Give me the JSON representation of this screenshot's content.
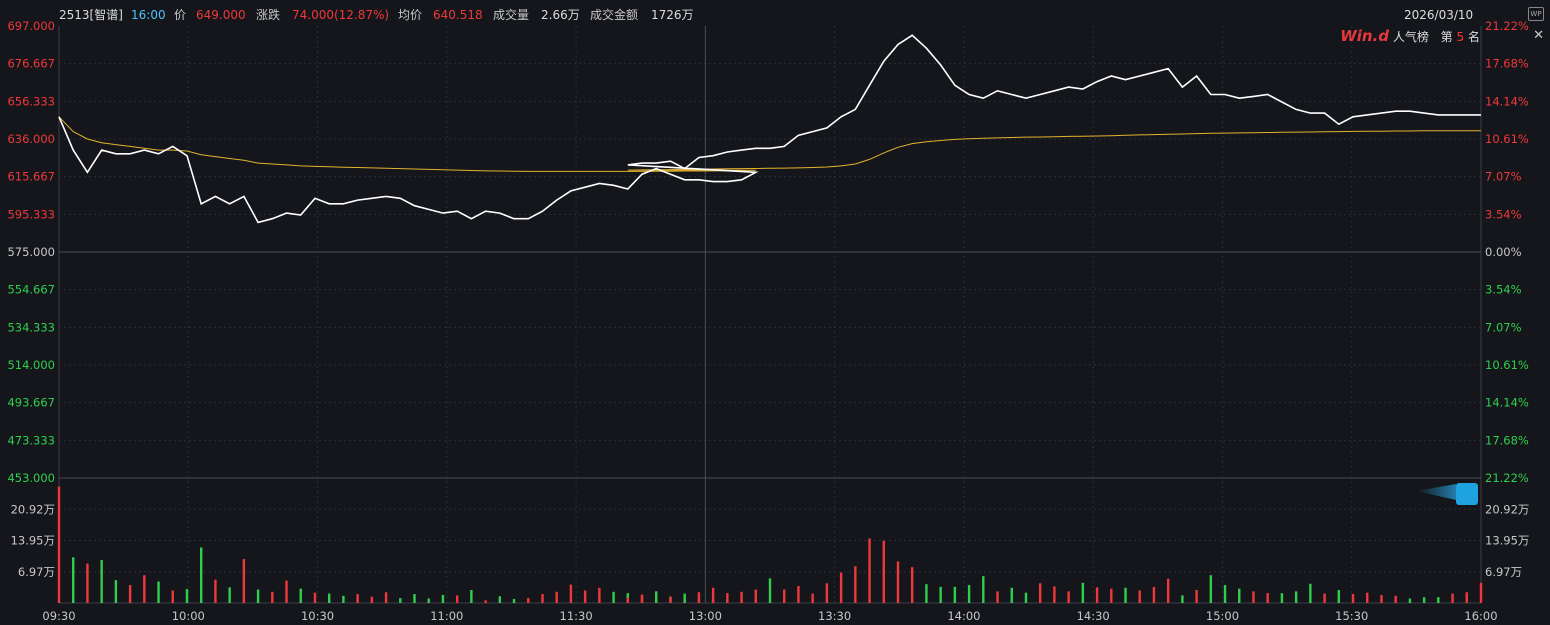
{
  "header": {
    "code_name": "2513[智谱]",
    "time": "16:00",
    "price_label": "价",
    "price": "649.000",
    "change_label": "涨跌",
    "change": "74.000(12.87%)",
    "avg_label": "均价",
    "avg": "640.518",
    "vol_label": "成交量",
    "vol": "2.66万",
    "amount_label": "成交金额",
    "amount": "1726万",
    "date": "2026/03/10"
  },
  "rank": {
    "brand": "Win.d",
    "label": "人气榜",
    "prefix": "第",
    "number": "5",
    "suffix": "名",
    "close": "✕"
  },
  "colors": {
    "up": "#f0383a",
    "down": "#2fcf4d",
    "price_line": "#ffffff",
    "avg_line": "#e3b22e",
    "grid": "#2b2f36",
    "background": "#14161b"
  },
  "chart_data": {
    "type": "line",
    "prev_close": 575.0,
    "price_axis": {
      "min": 453.0,
      "max": 697.0,
      "ticks": [
        "697.000",
        "676.667",
        "656.333",
        "636.000",
        "615.667",
        "595.333",
        "575.000",
        "554.667",
        "534.333",
        "514.000",
        "493.667",
        "473.333",
        "453.000"
      ],
      "pct_ticks": [
        "21.22%",
        "17.68%",
        "14.14%",
        "10.61%",
        "7.07%",
        "3.54%",
        "0.00%",
        "3.54%",
        "7.07%",
        "10.61%",
        "14.14%",
        "17.68%",
        "21.22%"
      ]
    },
    "volume_axis": {
      "max": 27.9,
      "ticks": [
        "20.92万",
        "13.95万",
        "6.97万"
      ]
    },
    "time_ticks": [
      "09:30",
      "10:00",
      "10:30",
      "11:00",
      "11:30",
      "13:00",
      "13:30",
      "14:00",
      "14:30",
      "15:00",
      "15:30",
      "16:00"
    ],
    "series": [
      {
        "times": [
          "09:30",
          "09:33",
          "09:36",
          "09:39",
          "09:42",
          "09:45",
          "09:48",
          "09:51",
          "09:54",
          "09:57",
          "10:00",
          "10:03",
          "10:06",
          "10:09",
          "10:12",
          "10:15",
          "10:18",
          "10:21",
          "10:24",
          "10:27",
          "10:30",
          "10:33",
          "10:36",
          "10:39",
          "10:42",
          "10:45",
          "10:48",
          "10:51",
          "10:54",
          "10:57",
          "11:00",
          "11:03",
          "11:06",
          "11:09",
          "11:12",
          "11:15",
          "11:18",
          "11:21",
          "11:24",
          "11:27",
          "11:30",
          "11:33",
          "11:36",
          "11:39",
          "11:42",
          "11:45",
          "11:48",
          "11:51",
          "11:54",
          "11:57",
          "13:00",
          "13:03",
          "13:06",
          "13:09",
          "13:12",
          "13:15",
          "13:18",
          "13:21",
          "13:24",
          "13:27",
          "13:30",
          "13:33",
          "13:36",
          "13:39",
          "13:42",
          "13:45",
          "13:48",
          "13:51",
          "13:54",
          "13:57",
          "14:00",
          "14:03",
          "14:06",
          "14:09",
          "14:12",
          "14:15",
          "14:18",
          "14:21",
          "14:24",
          "14:27",
          "14:30",
          "14:33",
          "14:36",
          "14:39",
          "14:42",
          "14:45",
          "14:48",
          "14:51",
          "14:54",
          "14:57",
          "15:00",
          "15:03",
          "15:06",
          "15:09",
          "15:12",
          "15:15",
          "15:18",
          "15:21",
          "15:24",
          "15:27",
          "15:30",
          "15:33",
          "15:36",
          "15:39",
          "15:42",
          "15:45",
          "15:48",
          "15:51",
          "15:54",
          "15:57",
          "16:00"
        ],
        "price": [
          648,
          630,
          618,
          630,
          628,
          628,
          630,
          628,
          632,
          627,
          601,
          605,
          601,
          605,
          591,
          593,
          596,
          595,
          604,
          601,
          601,
          603,
          604,
          605,
          604,
          600,
          598,
          596,
          597,
          593,
          597,
          596,
          593,
          593,
          597,
          603,
          608,
          610,
          612,
          611,
          609,
          617,
          620,
          617,
          614,
          614,
          613,
          613,
          614,
          618,
          622,
          623,
          623,
          624,
          620,
          626,
          627,
          629,
          630,
          631,
          631,
          632,
          638,
          640,
          642,
          648,
          652,
          665,
          678,
          687,
          692,
          685,
          676,
          665,
          660,
          658,
          662,
          660,
          658,
          660,
          662,
          664,
          663,
          667,
          670,
          668,
          670,
          672,
          674,
          664,
          670,
          660,
          660,
          658,
          659,
          660,
          656,
          652,
          650,
          650,
          644,
          648,
          649,
          650,
          651,
          651,
          650,
          649,
          649,
          649,
          649
        ],
        "avg": [
          648,
          640,
          636,
          634,
          633,
          632,
          631,
          630,
          630,
          629.5,
          627.5,
          626.5,
          625.5,
          624.5,
          623,
          622.5,
          622,
          621.5,
          621.2,
          621,
          620.8,
          620.6,
          620.4,
          620.2,
          620,
          619.8,
          619.6,
          619.4,
          619.2,
          619,
          618.8,
          618.7,
          618.6,
          618.5,
          618.5,
          618.5,
          618.5,
          618.5,
          618.5,
          618.5,
          618.5,
          618.5,
          618.6,
          618.6,
          618.7,
          618.7,
          618.8,
          618.9,
          619,
          619.1,
          619.2,
          619.3,
          619.4,
          619.5,
          619.6,
          619.7,
          619.8,
          619.9,
          620,
          620.1,
          620.2,
          620.3,
          620.4,
          620.6,
          620.9,
          621.5,
          622.5,
          625,
          628.5,
          631.5,
          633.5,
          634.5,
          635.2,
          635.8,
          636.1,
          636.4,
          636.6,
          636.8,
          637,
          637.1,
          637.2,
          637.4,
          637.5,
          637.6,
          637.8,
          638,
          638.2,
          638.4,
          638.6,
          638.7,
          638.9,
          639.1,
          639.2,
          639.3,
          639.4,
          639.5,
          639.6,
          639.7,
          639.8,
          639.9,
          640,
          640.1,
          640.2,
          640.2,
          640.3,
          640.3,
          640.4,
          640.4,
          640.5,
          640.5,
          640.5
        ],
        "volume": [
          26.0,
          10.2,
          8.8,
          9.6,
          5.1,
          4.0,
          6.2,
          4.8,
          2.8,
          3.1,
          12.4,
          5.2,
          3.5,
          9.8,
          3.0,
          2.5,
          5.0,
          3.2,
          2.3,
          2.1,
          1.6,
          2.0,
          1.4,
          2.4,
          1.1,
          2.0,
          1.0,
          1.8,
          1.7,
          2.9,
          0.6,
          1.5,
          0.9,
          1.1,
          2.0,
          2.5,
          4.1,
          2.8,
          3.4,
          2.5,
          2.2,
          1.4,
          1.7,
          1.4,
          0.8,
          0.9,
          0.6,
          0.7,
          0.8,
          0.6,
          1.2,
          1.9,
          2.6,
          1.4,
          2.1,
          2.4,
          3.4,
          2.2,
          2.5,
          3.0,
          5.5,
          3.0,
          3.8,
          2.1,
          4.4,
          6.8,
          8.2,
          14.4,
          13.9,
          9.3,
          8.0,
          4.2,
          3.6,
          3.6,
          4.0,
          6.0,
          2.6,
          3.4,
          2.3,
          4.4,
          3.7,
          2.6,
          4.5,
          3.5,
          3.2,
          3.4,
          2.8,
          3.6,
          5.4,
          1.7,
          2.9,
          6.2,
          4.0,
          3.2,
          2.6,
          2.2,
          2.2,
          2.6,
          4.3,
          2.1,
          2.9,
          2.0,
          2.3,
          1.8,
          1.6,
          1.0,
          1.3,
          1.3,
          2.1,
          2.4,
          4.5
        ],
        "volume_up": [
          true,
          false,
          true,
          false,
          false,
          true,
          true,
          false,
          true,
          false,
          false,
          true,
          false,
          true,
          false,
          true,
          true,
          false,
          true,
          false,
          false,
          true,
          true,
          true,
          false,
          false,
          false,
          false,
          true,
          false,
          true,
          false,
          false,
          true,
          true,
          true,
          true,
          true,
          true,
          false,
          false,
          true,
          true,
          false,
          false,
          true,
          false,
          false,
          true,
          true,
          true,
          true,
          false,
          true,
          false,
          true,
          true,
          true,
          true,
          true,
          false,
          true,
          true,
          true,
          true,
          true,
          true,
          true,
          true,
          true,
          true,
          false,
          false,
          false,
          false,
          false,
          true,
          false,
          false,
          true,
          true,
          true,
          false,
          true,
          true,
          false,
          true,
          true,
          true,
          false,
          true,
          false,
          false,
          false,
          true,
          true,
          false,
          false,
          false,
          true,
          false,
          true,
          true,
          true,
          true,
          false,
          false,
          false,
          true,
          true,
          true
        ]
      }
    ]
  }
}
